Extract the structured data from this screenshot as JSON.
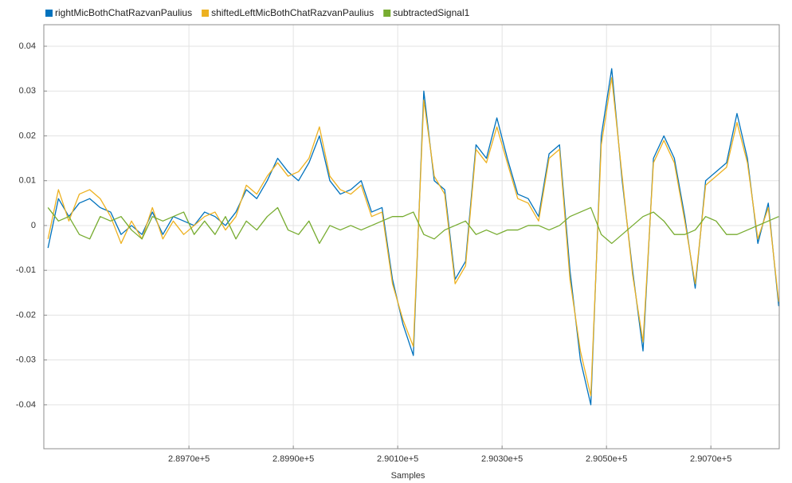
{
  "chart_data": {
    "type": "line",
    "x_label": "Samples",
    "xlim": [
      289422,
      290831
    ],
    "ylim": [
      -0.0498,
      0.0448
    ],
    "xticks": [
      {
        "value": 289700,
        "label": "2.8970e+5"
      },
      {
        "value": 289900,
        "label": "2.8990e+5"
      },
      {
        "value": 290100,
        "label": "2.9010e+5"
      },
      {
        "value": 290300,
        "label": "2.9030e+5"
      },
      {
        "value": 290500,
        "label": "2.9050e+5"
      },
      {
        "value": 290700,
        "label": "2.9070e+5"
      }
    ],
    "yticks": [
      -0.04,
      -0.03,
      -0.02,
      -0.01,
      0,
      0.01,
      0.02,
      0.03,
      0.04
    ],
    "grid": true,
    "legend": "top",
    "x": [
      289430,
      289450,
      289470,
      289490,
      289510,
      289530,
      289550,
      289570,
      289590,
      289610,
      289630,
      289650,
      289670,
      289690,
      289710,
      289730,
      289750,
      289770,
      289790,
      289810,
      289830,
      289850,
      289870,
      289890,
      289910,
      289930,
      289950,
      289970,
      289990,
      290010,
      290030,
      290050,
      290070,
      290090,
      290110,
      290130,
      290150,
      290170,
      290190,
      290210,
      290230,
      290250,
      290270,
      290290,
      290310,
      290330,
      290350,
      290370,
      290390,
      290410,
      290430,
      290450,
      290470,
      290490,
      290510,
      290530,
      290550,
      290570,
      290590,
      290610,
      290630,
      290650,
      290670,
      290690,
      290710,
      290730,
      290750,
      290770,
      290790,
      290810,
      290830
    ],
    "series": [
      {
        "name": "rightMicBothChatRazvanPaulius",
        "color": "#0072bd",
        "values": [
          -0.005,
          0.006,
          0.002,
          0.005,
          0.006,
          0.004,
          0.003,
          -0.002,
          0.0,
          -0.002,
          0.003,
          -0.002,
          0.002,
          0.001,
          0.0,
          0.003,
          0.002,
          0.0,
          0.003,
          0.008,
          0.006,
          0.01,
          0.015,
          0.012,
          0.01,
          0.014,
          0.02,
          0.01,
          0.007,
          0.008,
          0.01,
          0.003,
          0.004,
          -0.012,
          -0.022,
          -0.029,
          0.03,
          0.01,
          0.008,
          -0.012,
          -0.008,
          0.018,
          0.015,
          0.024,
          0.015,
          0.007,
          0.006,
          0.002,
          0.016,
          0.018,
          -0.01,
          -0.03,
          -0.04,
          0.02,
          0.035,
          0.01,
          -0.01,
          -0.028,
          0.015,
          0.02,
          0.015,
          0.002,
          -0.014,
          0.01,
          0.012,
          0.014,
          0.025,
          0.015,
          -0.004,
          0.005,
          -0.018
        ]
      },
      {
        "name": "shiftedLeftMicBothChatRazvanPaulius",
        "color": "#edb120",
        "values": [
          -0.003,
          0.008,
          0.001,
          0.007,
          0.008,
          0.006,
          0.002,
          -0.004,
          0.001,
          -0.003,
          0.004,
          -0.003,
          0.001,
          -0.002,
          0.0,
          0.002,
          0.003,
          -0.001,
          0.002,
          0.009,
          0.007,
          0.011,
          0.014,
          0.011,
          0.012,
          0.015,
          0.022,
          0.011,
          0.008,
          0.007,
          0.009,
          0.002,
          0.003,
          -0.013,
          -0.021,
          -0.027,
          0.028,
          0.011,
          0.007,
          -0.013,
          -0.009,
          0.017,
          0.014,
          0.022,
          0.014,
          0.006,
          0.005,
          0.001,
          0.015,
          0.017,
          -0.012,
          -0.028,
          -0.038,
          0.018,
          0.033,
          0.011,
          -0.011,
          -0.026,
          0.014,
          0.019,
          0.014,
          0.001,
          -0.013,
          0.009,
          0.011,
          0.013,
          0.023,
          0.014,
          -0.003,
          0.004,
          -0.017
        ]
      },
      {
        "name": "subtractedSignal1",
        "color": "#77ac30",
        "values": [
          0.004,
          0.001,
          0.002,
          -0.002,
          -0.003,
          0.002,
          0.001,
          0.002,
          -0.001,
          -0.003,
          0.002,
          0.001,
          0.002,
          0.003,
          -0.002,
          0.001,
          -0.002,
          0.002,
          -0.003,
          0.001,
          -0.001,
          0.002,
          0.004,
          -0.001,
          -0.002,
          0.001,
          -0.004,
          0.0,
          -0.001,
          0.0,
          -0.001,
          0.0,
          0.001,
          0.002,
          0.002,
          0.003,
          -0.002,
          -0.003,
          -0.001,
          0.0,
          0.001,
          -0.002,
          -0.001,
          -0.002,
          -0.001,
          -0.001,
          0.0,
          0.0,
          -0.001,
          0.0,
          0.002,
          0.003,
          0.004,
          -0.002,
          -0.004,
          -0.002,
          0.0,
          0.002,
          0.003,
          0.001,
          -0.002,
          -0.002,
          -0.001,
          0.002,
          0.001,
          -0.002,
          -0.002,
          -0.001,
          0.0,
          0.001,
          0.002
        ]
      }
    ]
  }
}
